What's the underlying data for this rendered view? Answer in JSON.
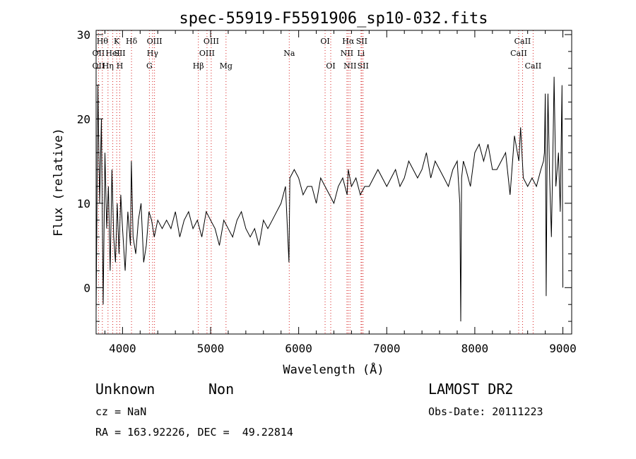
{
  "chart_data": {
    "type": "line",
    "title": "spec-55919-F5591906_sp10-032.fits",
    "xlabel": "Wavelength (Å)",
    "ylabel": "Flux (relative)",
    "xlim": [
      3700,
      9100
    ],
    "ylim": [
      -5.5,
      30.5
    ],
    "xticks": [
      4000,
      5000,
      6000,
      7000,
      8000,
      9000
    ],
    "yticks": [
      0,
      10,
      20,
      30
    ],
    "grid": false,
    "series": [
      {
        "x": [
          3700,
          3720,
          3740,
          3760,
          3780,
          3800,
          3820,
          3840,
          3860,
          3880,
          3900,
          3920,
          3940,
          3960,
          3980,
          4000,
          4030,
          4060,
          4090,
          4100,
          4120,
          4150,
          4180,
          4210,
          4240,
          4270,
          4300,
          4330,
          4360,
          4400,
          4450,
          4500,
          4550,
          4600,
          4650,
          4700,
          4750,
          4800,
          4850,
          4900,
          4950,
          5000,
          5050,
          5100,
          5150,
          5200,
          5250,
          5300,
          5350,
          5400,
          5450,
          5500,
          5550,
          5600,
          5650,
          5700,
          5750,
          5800,
          5850,
          5890,
          5900,
          5950,
          6000,
          6050,
          6100,
          6150,
          6200,
          6250,
          6300,
          6350,
          6400,
          6450,
          6500,
          6550,
          6563,
          6600,
          6650,
          6700,
          6750,
          6800,
          6850,
          6900,
          6950,
          7000,
          7050,
          7100,
          7150,
          7200,
          7250,
          7300,
          7350,
          7400,
          7450,
          7500,
          7550,
          7600,
          7650,
          7700,
          7750,
          7800,
          7830,
          7840,
          7850,
          7860,
          7870,
          7900,
          7950,
          8000,
          8050,
          8100,
          8150,
          8200,
          8250,
          8300,
          8350,
          8400,
          8450,
          8500,
          8520,
          8550,
          8600,
          8650,
          8700,
          8750,
          8780,
          8790,
          8800,
          8810,
          8820,
          8830,
          8850,
          8870,
          8890,
          8900,
          8920,
          8950,
          8970,
          8990,
          9000
        ],
        "y": [
          -3,
          24,
          10,
          20,
          -2,
          16,
          7,
          12,
          2,
          14,
          6,
          3,
          10,
          4,
          11,
          7,
          2,
          9,
          5,
          15,
          6,
          4,
          8,
          10,
          3,
          5,
          9,
          8,
          6,
          8,
          7,
          8,
          7,
          9,
          6,
          8,
          9,
          7,
          8,
          6,
          9,
          8,
          7,
          5,
          8,
          7,
          6,
          8,
          9,
          7,
          6,
          7,
          5,
          8,
          7,
          8,
          9,
          10,
          12,
          3,
          13,
          14,
          13,
          11,
          12,
          12,
          10,
          13,
          12,
          11,
          10,
          12,
          13,
          11,
          14,
          12,
          13,
          11,
          12,
          12,
          13,
          14,
          13,
          12,
          13,
          14,
          12,
          13,
          15,
          14,
          13,
          14,
          16,
          13,
          15,
          14,
          13,
          12,
          14,
          15,
          10,
          -4,
          13,
          14,
          15,
          14,
          12,
          16,
          17,
          15,
          17,
          14,
          14,
          15,
          16,
          11,
          18,
          15,
          19,
          13,
          12,
          13,
          12,
          14,
          15,
          16,
          23,
          -1,
          14,
          23,
          13,
          6,
          18,
          25,
          12,
          16,
          9,
          24,
          0
        ]
      }
    ],
    "line_labels": [
      {
        "label": "OII",
        "wavelength": 3727,
        "row": 2
      },
      {
        "label": "OII",
        "wavelength": 3727,
        "row": 3
      },
      {
        "label": "Hθ",
        "wavelength": 3771,
        "row": 1
      },
      {
        "label": "Hη",
        "wavelength": 3835,
        "row": 3
      },
      {
        "label": "HeI",
        "wavelength": 3889,
        "row": 2
      },
      {
        "label": "K",
        "wavelength": 3934,
        "row": 1
      },
      {
        "label": "SII",
        "wavelength": 3969,
        "row": 2
      },
      {
        "label": "H",
        "wavelength": 3969,
        "row": 3
      },
      {
        "label": "Hδ",
        "wavelength": 4102,
        "row": 1
      },
      {
        "label": "OIII",
        "wavelength": 4363,
        "row": 1
      },
      {
        "label": "Hγ",
        "wavelength": 4341,
        "row": 2
      },
      {
        "label": "G",
        "wavelength": 4305,
        "row": 3
      },
      {
        "label": "Hβ",
        "wavelength": 4861,
        "row": 3
      },
      {
        "label": "OIII",
        "wavelength": 4959,
        "row": 2
      },
      {
        "label": "OIII",
        "wavelength": 5007,
        "row": 1
      },
      {
        "label": "Mg",
        "wavelength": 5175,
        "row": 3
      },
      {
        "label": "Na",
        "wavelength": 5893,
        "row": 2
      },
      {
        "label": "OI",
        "wavelength": 6300,
        "row": 1
      },
      {
        "label": "OI",
        "wavelength": 6364,
        "row": 3
      },
      {
        "label": "NII",
        "wavelength": 6548,
        "row": 2
      },
      {
        "label": "Hα",
        "wavelength": 6563,
        "row": 1
      },
      {
        "label": "NII",
        "wavelength": 6583,
        "row": 3
      },
      {
        "label": "Li",
        "wavelength": 6708,
        "row": 2
      },
      {
        "label": "SII",
        "wavelength": 6716,
        "row": 1
      },
      {
        "label": "SII",
        "wavelength": 6731,
        "row": 3
      },
      {
        "label": "CaII",
        "wavelength": 8498,
        "row": 2
      },
      {
        "label": "CaII",
        "wavelength": 8542,
        "row": 1
      },
      {
        "label": "CaII",
        "wavelength": 8662,
        "row": 3
      }
    ]
  },
  "info": {
    "class_label": "Unknown",
    "subclass_label": "Non",
    "survey_label": "LAMOST DR2",
    "cz_label": "cz = NaN",
    "obs_date_label": "Obs-Date: 20111223",
    "coords_label": "RA = 163.92226, DEC =  49.22814"
  }
}
